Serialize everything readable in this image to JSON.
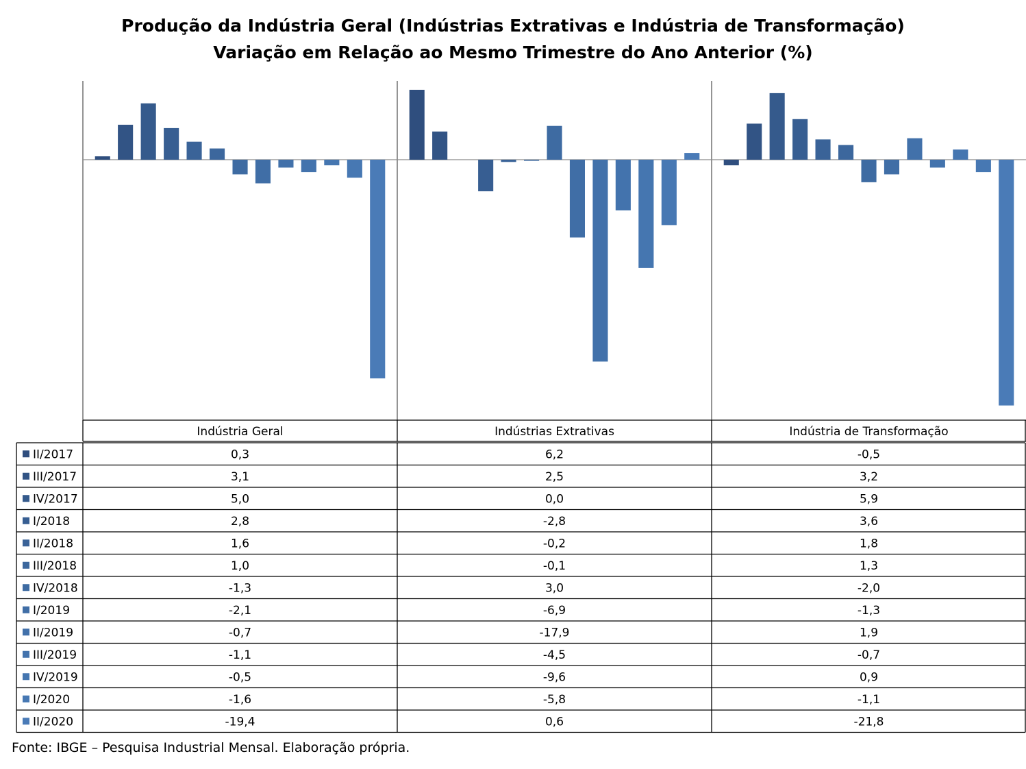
{
  "chart_data": {
    "type": "bar",
    "title": "Produção da Indústria Geral (Indústrias Extrativas e Indústria de Transformação)",
    "subtitle": "Variação em Relação ao Mesmo Trimestre do Ano Anterior (%)",
    "categories": [
      "Indústria Geral",
      "Indústrias Extrativas",
      "Indústria de Transformação"
    ],
    "series": [
      {
        "name": "II/2017",
        "values": [
          0.3,
          6.2,
          -0.5
        ],
        "color": "#2F4E7E"
      },
      {
        "name": "III/2017",
        "values": [
          3.1,
          2.5,
          3.2
        ],
        "color": "#325485"
      },
      {
        "name": "IV/2017",
        "values": [
          5.0,
          0.0,
          5.9
        ],
        "color": "#355A8C"
      },
      {
        "name": "I/2018",
        "values": [
          2.8,
          -2.8,
          3.6
        ],
        "color": "#375E92"
      },
      {
        "name": "II/2018",
        "values": [
          1.6,
          -0.2,
          1.8
        ],
        "color": "#3A6398"
      },
      {
        "name": "III/2018",
        "values": [
          1.0,
          -0.1,
          1.3
        ],
        "color": "#3C679D"
      },
      {
        "name": "IV/2018",
        "values": [
          -1.3,
          3.0,
          -2.0
        ],
        "color": "#3E6BA2"
      },
      {
        "name": "I/2019",
        "values": [
          -2.1,
          -6.9,
          -1.3
        ],
        "color": "#406EA6"
      },
      {
        "name": "II/2019",
        "values": [
          -0.7,
          -17.9,
          1.9
        ],
        "color": "#4271AA"
      },
      {
        "name": "III/2019",
        "values": [
          -1.1,
          -4.5,
          -0.7
        ],
        "color": "#4373AD"
      },
      {
        "name": "IV/2019",
        "values": [
          -0.5,
          -9.6,
          0.9
        ],
        "color": "#4576B0"
      },
      {
        "name": "I/2020",
        "values": [
          -1.6,
          -5.8,
          -1.1
        ],
        "color": "#4778B3"
      },
      {
        "name": "II/2020",
        "values": [
          -19.4,
          0.6,
          -21.8
        ],
        "color": "#4A7BB7"
      }
    ],
    "data_table": true,
    "legend": "data-table-left",
    "grid": false
  },
  "source": "Fonte: IBGE – Pesquisa Industrial Mensal. Elaboração própria."
}
